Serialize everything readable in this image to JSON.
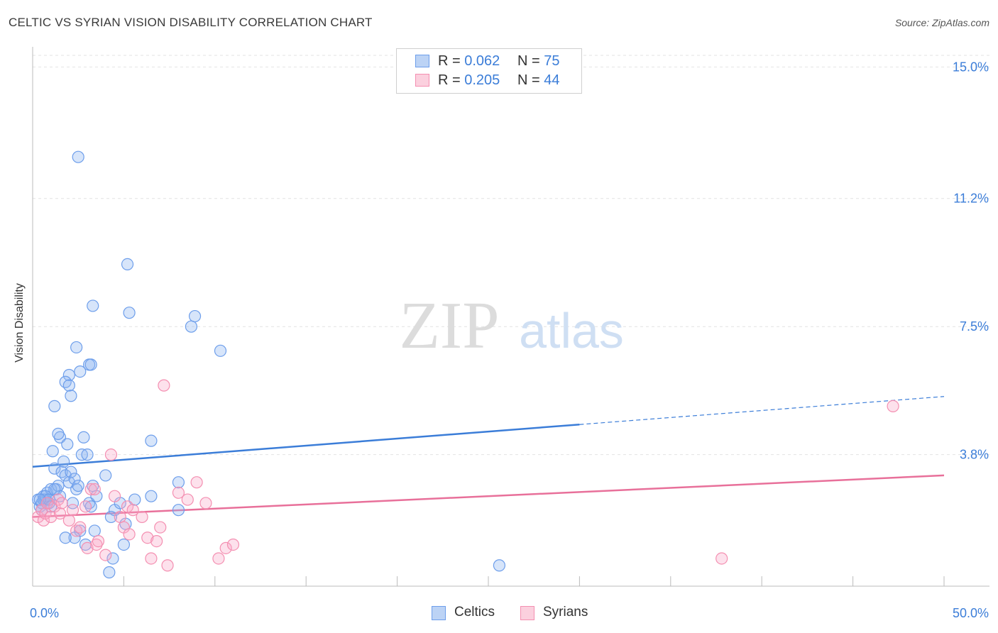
{
  "header": {
    "title": "CELTIC VS SYRIAN VISION DISABILITY CORRELATION CHART",
    "source": "Source: ZipAtlas.com"
  },
  "watermark": {
    "zip": "ZIP",
    "atlas": "atlas"
  },
  "legend": {
    "rows": [
      {
        "r_label": "R = ",
        "r_value": "0.062",
        "n_label": "N = ",
        "n_value": "75",
        "color": "#6d9eeb"
      },
      {
        "r_label": "R = ",
        "r_value": "0.205",
        "n_label": "N = ",
        "n_value": "44",
        "color": "#f48fb1"
      }
    ]
  },
  "bottom_legend": [
    {
      "label": "Celtics",
      "color": "#6d9eeb"
    },
    {
      "label": "Syrians",
      "color": "#f48fb1"
    }
  ],
  "colors": {
    "blue": "#3b7dd8",
    "pink": "#e8709a",
    "grid": "#e3e3e3"
  },
  "chart_data": {
    "type": "scatter",
    "xlabel": "",
    "ylabel": "Vision Disability",
    "xlim": [
      0,
      50
    ],
    "ylim": [
      0,
      15.5
    ],
    "x_tick_labels": [
      {
        "value": 0,
        "label": "0.0%"
      },
      {
        "value": 50,
        "label": "50.0%"
      }
    ],
    "y_tick_labels": [
      {
        "value": 3.8,
        "label": "3.8%"
      },
      {
        "value": 7.5,
        "label": "7.5%"
      },
      {
        "value": 11.2,
        "label": "11.2%"
      },
      {
        "value": 15.0,
        "label": "15.0%"
      }
    ],
    "grid": true,
    "series": [
      {
        "name": "Celtics",
        "color": "#6d9eeb",
        "points": [
          [
            0.3,
            2.5
          ],
          [
            0.4,
            2.3
          ],
          [
            0.5,
            2.4
          ],
          [
            0.6,
            2.6
          ],
          [
            0.7,
            2.5
          ],
          [
            0.8,
            2.7
          ],
          [
            0.9,
            2.4
          ],
          [
            1.0,
            2.8
          ],
          [
            0.5,
            2.2
          ],
          [
            0.6,
            2.5
          ],
          [
            0.7,
            2.6
          ],
          [
            0.8,
            2.4
          ],
          [
            0.9,
            2.5
          ],
          [
            1.0,
            2.3
          ],
          [
            1.2,
            3.4
          ],
          [
            1.1,
            3.9
          ],
          [
            1.3,
            2.8
          ],
          [
            1.4,
            2.9
          ],
          [
            1.5,
            2.6
          ],
          [
            1.5,
            4.3
          ],
          [
            1.6,
            3.3
          ],
          [
            1.7,
            3.6
          ],
          [
            1.8,
            3.2
          ],
          [
            1.9,
            4.1
          ],
          [
            2.0,
            3.0
          ],
          [
            2.1,
            3.3
          ],
          [
            2.2,
            2.4
          ],
          [
            2.3,
            3.1
          ],
          [
            2.4,
            2.8
          ],
          [
            2.5,
            2.9
          ],
          [
            2.6,
            1.6
          ],
          [
            2.7,
            3.8
          ],
          [
            2.8,
            4.3
          ],
          [
            2.9,
            1.2
          ],
          [
            3.0,
            3.8
          ],
          [
            3.1,
            2.4
          ],
          [
            3.2,
            2.3
          ],
          [
            3.3,
            2.9
          ],
          [
            3.4,
            1.6
          ],
          [
            3.5,
            2.6
          ],
          [
            4.0,
            3.2
          ],
          [
            4.5,
            2.2
          ],
          [
            4.8,
            2.4
          ],
          [
            5.1,
            1.8
          ],
          [
            5.6,
            2.5
          ],
          [
            2.0,
            6.1
          ],
          [
            1.8,
            5.9
          ],
          [
            2.6,
            6.2
          ],
          [
            3.1,
            6.4
          ],
          [
            3.2,
            6.4
          ],
          [
            1.2,
            5.2
          ],
          [
            2.0,
            5.8
          ],
          [
            2.1,
            5.5
          ],
          [
            1.4,
            4.4
          ],
          [
            2.3,
            1.4
          ],
          [
            4.3,
            2.0
          ],
          [
            8.0,
            2.2
          ],
          [
            6.5,
            2.6
          ],
          [
            8.0,
            3.0
          ],
          [
            6.5,
            4.2
          ],
          [
            2.4,
            6.9
          ],
          [
            3.3,
            8.1
          ],
          [
            5.3,
            7.9
          ],
          [
            8.7,
            7.5
          ],
          [
            8.9,
            7.8
          ],
          [
            10.3,
            6.8
          ],
          [
            5.2,
            9.3
          ],
          [
            2.5,
            12.4
          ],
          [
            4.2,
            0.4
          ],
          [
            4.4,
            0.8
          ],
          [
            5.0,
            1.2
          ],
          [
            1.8,
            1.4
          ],
          [
            25.6,
            0.6
          ],
          [
            0.4,
            2.5
          ],
          [
            1.2,
            2.8
          ]
        ]
      },
      {
        "name": "Syrians",
        "color": "#f48fb1",
        "points": [
          [
            0.3,
            2.0
          ],
          [
            0.5,
            2.2
          ],
          [
            0.6,
            1.9
          ],
          [
            0.7,
            2.1
          ],
          [
            0.8,
            2.4
          ],
          [
            1.0,
            2.0
          ],
          [
            1.2,
            2.3
          ],
          [
            1.4,
            2.5
          ],
          [
            1.5,
            2.1
          ],
          [
            1.6,
            2.4
          ],
          [
            2.0,
            1.9
          ],
          [
            2.2,
            2.2
          ],
          [
            2.4,
            1.6
          ],
          [
            2.6,
            1.7
          ],
          [
            2.9,
            2.3
          ],
          [
            3.0,
            1.1
          ],
          [
            3.2,
            2.8
          ],
          [
            3.4,
            2.8
          ],
          [
            3.5,
            1.2
          ],
          [
            3.6,
            1.3
          ],
          [
            4.0,
            0.9
          ],
          [
            4.3,
            3.8
          ],
          [
            4.5,
            2.6
          ],
          [
            4.8,
            2.0
          ],
          [
            5.0,
            1.7
          ],
          [
            5.2,
            2.3
          ],
          [
            5.3,
            1.5
          ],
          [
            5.5,
            2.2
          ],
          [
            6.0,
            2.0
          ],
          [
            6.3,
            1.4
          ],
          [
            6.5,
            0.8
          ],
          [
            6.8,
            1.3
          ],
          [
            7.0,
            1.7
          ],
          [
            7.2,
            5.8
          ],
          [
            7.4,
            0.6
          ],
          [
            8.0,
            2.7
          ],
          [
            8.5,
            2.5
          ],
          [
            9.0,
            3.0
          ],
          [
            9.5,
            2.4
          ],
          [
            10.2,
            0.8
          ],
          [
            10.6,
            1.1
          ],
          [
            11.0,
            1.2
          ],
          [
            37.8,
            0.8
          ],
          [
            47.2,
            5.2
          ]
        ]
      }
    ],
    "trend_lines": [
      {
        "name": "Celtics",
        "x": [
          0,
          30
        ],
        "y": [
          3.45,
          4.67
        ],
        "dashed_extension": [
          30,
          50
        ],
        "dashed_y_end": 5.48
      },
      {
        "name": "Syrians",
        "x": [
          0,
          50
        ],
        "y": [
          2.0,
          3.2
        ]
      }
    ]
  }
}
